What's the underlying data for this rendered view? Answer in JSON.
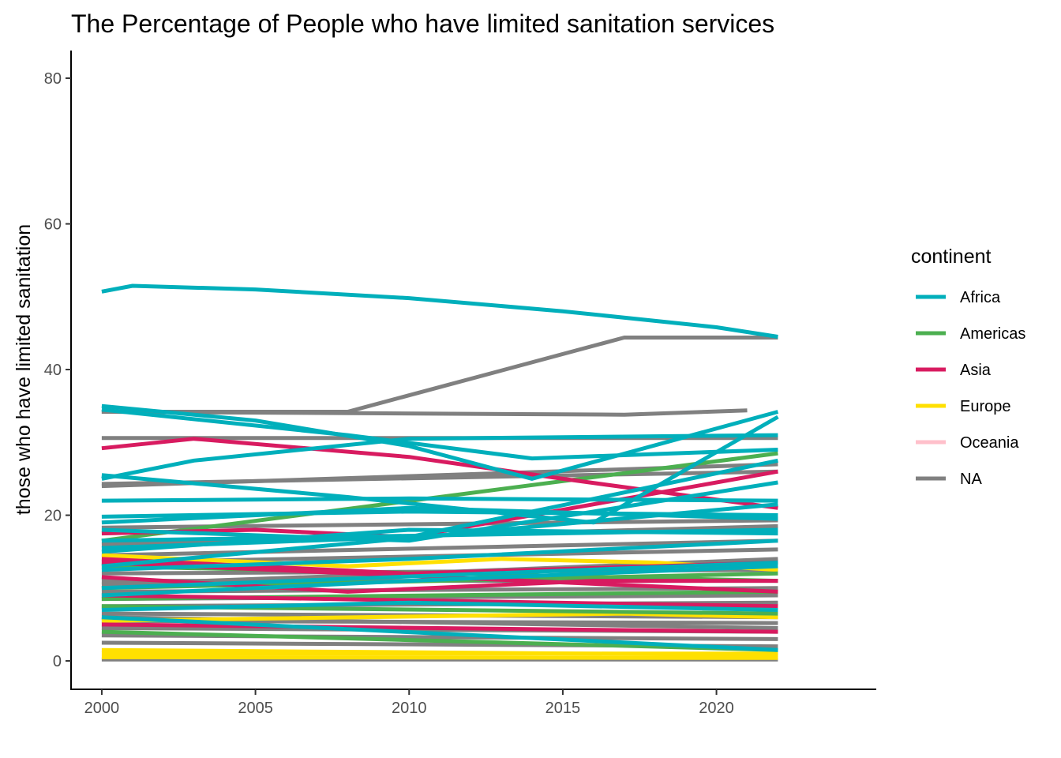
{
  "chart_data": {
    "type": "line",
    "title": "The Percentage of People who have limited sanitation services",
    "xlabel": "",
    "ylabel": "those who have limited sanitation",
    "xlim": [
      1999,
      2025.2
    ],
    "ylim": [
      -3.9,
      83.8
    ],
    "x_ticks": [
      2000,
      2005,
      2010,
      2015,
      2020
    ],
    "y_ticks": [
      0,
      20,
      40,
      60,
      80
    ],
    "grid": false,
    "legend": {
      "title": "continent",
      "position": "right",
      "entries": [
        {
          "label": "Africa",
          "color": "#00AFBB"
        },
        {
          "label": "Americas",
          "color": "#4CAF50"
        },
        {
          "label": "Asia",
          "color": "#D81B60"
        },
        {
          "label": "Europe",
          "color": "#FFE000"
        },
        {
          "label": "Oceania",
          "color": "#FFC0CB"
        },
        {
          "label": "NA",
          "color": "#808080"
        }
      ]
    },
    "series": [
      {
        "continent": "NA",
        "points": [
          [
            2000,
            0.2
          ],
          [
            2022,
            0.2
          ]
        ]
      },
      {
        "continent": "NA",
        "points": [
          [
            2000,
            2.5
          ],
          [
            2022,
            2.0
          ]
        ]
      },
      {
        "continent": "NA",
        "points": [
          [
            2000,
            3.5
          ],
          [
            2022,
            3.0
          ]
        ]
      },
      {
        "continent": "NA",
        "points": [
          [
            2000,
            4.5
          ],
          [
            2022,
            4.0
          ]
        ]
      },
      {
        "continent": "NA",
        "points": [
          [
            2000,
            5.5
          ],
          [
            2022,
            5.2
          ]
        ]
      },
      {
        "continent": "NA",
        "points": [
          [
            2000,
            6.5
          ],
          [
            2022,
            6.0
          ]
        ]
      },
      {
        "continent": "NA",
        "points": [
          [
            2000,
            7.5
          ],
          [
            2022,
            8.0
          ]
        ]
      },
      {
        "continent": "NA",
        "points": [
          [
            2000,
            8.5
          ],
          [
            2022,
            9.0
          ]
        ]
      },
      {
        "continent": "NA",
        "points": [
          [
            2000,
            9.5
          ],
          [
            2022,
            10.0
          ]
        ]
      },
      {
        "continent": "NA",
        "points": [
          [
            2000,
            11.0
          ],
          [
            2022,
            11.0
          ]
        ]
      },
      {
        "continent": "NA",
        "points": [
          [
            2000,
            12.0
          ],
          [
            2022,
            12.5
          ]
        ]
      },
      {
        "continent": "NA",
        "points": [
          [
            2000,
            13.5
          ],
          [
            2022,
            15.3
          ]
        ]
      },
      {
        "continent": "NA",
        "points": [
          [
            2000,
            14.5
          ],
          [
            2022,
            16.5
          ]
        ]
      },
      {
        "continent": "NA",
        "points": [
          [
            2000,
            18.3
          ],
          [
            2022,
            19.3
          ]
        ]
      },
      {
        "continent": "NA",
        "points": [
          [
            2000,
            24.0
          ],
          [
            2022,
            27.0
          ]
        ]
      },
      {
        "continent": "NA",
        "points": [
          [
            2000,
            24.3
          ],
          [
            2022,
            26.0
          ]
        ]
      },
      {
        "continent": "NA",
        "points": [
          [
            2000,
            30.6
          ],
          [
            2022,
            30.6
          ]
        ]
      },
      {
        "continent": "NA",
        "points": [
          [
            2000,
            34.2
          ],
          [
            2008,
            34.2
          ],
          [
            2017,
            44.4
          ],
          [
            2022,
            44.4
          ]
        ]
      },
      {
        "continent": "NA",
        "points": [
          [
            2000,
            34.2
          ],
          [
            2017,
            33.8
          ],
          [
            2021,
            34.4
          ]
        ]
      },
      {
        "continent": "NA",
        "points": [
          [
            2000,
            10.5
          ],
          [
            2010,
            12.0
          ],
          [
            2022,
            14.0
          ]
        ]
      },
      {
        "continent": "NA",
        "points": [
          [
            2000,
            6.0
          ],
          [
            2022,
            4.5
          ]
        ]
      },
      {
        "continent": "NA",
        "points": [
          [
            2000,
            16.0
          ],
          [
            2022,
            18.5
          ]
        ]
      },
      {
        "continent": "Europe",
        "points": [
          [
            2000,
            1.0
          ],
          [
            2010,
            1.0
          ],
          [
            2022,
            1.0
          ]
        ]
      },
      {
        "continent": "Europe",
        "points": [
          [
            2000,
            1.5
          ],
          [
            2022,
            0.8
          ]
        ]
      },
      {
        "continent": "Europe",
        "points": [
          [
            2000,
            0.5
          ],
          [
            2022,
            0.4
          ]
        ]
      },
      {
        "continent": "Europe",
        "points": [
          [
            2000,
            14.5
          ],
          [
            2008,
            13.0
          ],
          [
            2013,
            14.0
          ],
          [
            2018,
            13.5
          ],
          [
            2022,
            12.5
          ]
        ]
      },
      {
        "continent": "Europe",
        "points": [
          [
            2000,
            5.5
          ],
          [
            2017,
            6.5
          ],
          [
            2022,
            6.0
          ]
        ]
      },
      {
        "continent": "Americas",
        "points": [
          [
            2000,
            4.0
          ],
          [
            2022,
            1.5
          ]
        ]
      },
      {
        "continent": "Americas",
        "points": [
          [
            2000,
            7.5
          ],
          [
            2022,
            6.5
          ]
        ]
      },
      {
        "continent": "Americas",
        "points": [
          [
            2000,
            8.5
          ],
          [
            2022,
            9.5
          ]
        ]
      },
      {
        "continent": "Americas",
        "points": [
          [
            2000,
            16.5
          ],
          [
            2022,
            28.5
          ]
        ]
      },
      {
        "continent": "Americas",
        "points": [
          [
            2000,
            10.0
          ],
          [
            2022,
            12.0
          ]
        ]
      },
      {
        "continent": "Americas",
        "points": [
          [
            2000,
            13.0
          ],
          [
            2022,
            11.0
          ]
        ]
      },
      {
        "continent": "Asia",
        "points": [
          [
            2000,
            29.2
          ],
          [
            2003,
            30.5
          ],
          [
            2010,
            28.0
          ],
          [
            2015,
            25.0
          ],
          [
            2022,
            21.0
          ]
        ]
      },
      {
        "continent": "Asia",
        "points": [
          [
            2000,
            17.5
          ],
          [
            2005,
            18.0
          ],
          [
            2010,
            17.0
          ],
          [
            2022,
            26.0
          ]
        ]
      },
      {
        "continent": "Asia",
        "points": [
          [
            2000,
            11.5
          ],
          [
            2008,
            9.5
          ],
          [
            2016,
            11.0
          ],
          [
            2022,
            11.0
          ]
        ]
      },
      {
        "continent": "Asia",
        "points": [
          [
            2000,
            5.0
          ],
          [
            2022,
            4.0
          ]
        ]
      },
      {
        "continent": "Asia",
        "points": [
          [
            2000,
            14.0
          ],
          [
            2010,
            12.0
          ],
          [
            2022,
            13.5
          ]
        ]
      },
      {
        "continent": "Asia",
        "points": [
          [
            2000,
            9.0
          ],
          [
            2022,
            7.5
          ]
        ]
      },
      {
        "continent": "Asia",
        "points": [
          [
            2000,
            13.5
          ],
          [
            2022,
            9.5
          ]
        ]
      },
      {
        "continent": "Africa",
        "points": [
          [
            2000,
            50.7
          ],
          [
            2001,
            51.5
          ],
          [
            2005,
            51.0
          ],
          [
            2010,
            49.8
          ],
          [
            2015,
            48.0
          ],
          [
            2020,
            45.8
          ],
          [
            2022,
            44.5
          ]
        ]
      },
      {
        "continent": "Africa",
        "points": [
          [
            2000,
            35.0
          ],
          [
            2005,
            33.0
          ],
          [
            2010,
            29.5
          ],
          [
            2014,
            25.0
          ],
          [
            2022,
            34.2
          ]
        ]
      },
      {
        "continent": "Africa",
        "points": [
          [
            2000,
            34.5
          ],
          [
            2008,
            31.0
          ],
          [
            2014,
            27.8
          ],
          [
            2022,
            29.0
          ]
        ]
      },
      {
        "continent": "Africa",
        "points": [
          [
            2000,
            25.0
          ],
          [
            2003,
            27.5
          ],
          [
            2010,
            30.5
          ],
          [
            2022,
            31.0
          ]
        ]
      },
      {
        "continent": "Africa",
        "points": [
          [
            2000,
            25.5
          ],
          [
            2008,
            22.5
          ],
          [
            2016,
            19.0
          ],
          [
            2022,
            33.5
          ]
        ]
      },
      {
        "continent": "Africa",
        "points": [
          [
            2000,
            22.0
          ],
          [
            2010,
            22.3
          ],
          [
            2022,
            22.0
          ]
        ]
      },
      {
        "continent": "Africa",
        "points": [
          [
            2000,
            19.8
          ],
          [
            2010,
            20.5
          ],
          [
            2022,
            20.0
          ]
        ]
      },
      {
        "continent": "Africa",
        "points": [
          [
            2000,
            18.0
          ],
          [
            2010,
            16.5
          ],
          [
            2022,
            24.5
          ]
        ]
      },
      {
        "continent": "Africa",
        "points": [
          [
            2000,
            15.5
          ],
          [
            2010,
            17.0
          ],
          [
            2022,
            27.5
          ]
        ]
      },
      {
        "continent": "Africa",
        "points": [
          [
            2000,
            15.0
          ],
          [
            2010,
            18.0
          ],
          [
            2022,
            17.5
          ]
        ]
      },
      {
        "continent": "Africa",
        "points": [
          [
            2000,
            13.0
          ],
          [
            2022,
            21.5
          ]
        ]
      },
      {
        "continent": "Africa",
        "points": [
          [
            2000,
            12.5
          ],
          [
            2010,
            14.0
          ],
          [
            2022,
            16.5
          ]
        ]
      },
      {
        "continent": "Africa",
        "points": [
          [
            2000,
            10.0
          ],
          [
            2022,
            13.5
          ]
        ]
      },
      {
        "continent": "Africa",
        "points": [
          [
            2000,
            9.0
          ],
          [
            2010,
            11.0
          ],
          [
            2022,
            13.0
          ]
        ]
      },
      {
        "continent": "Africa",
        "points": [
          [
            2000,
            7.0
          ],
          [
            2010,
            8.0
          ],
          [
            2022,
            7.0
          ]
        ]
      },
      {
        "continent": "Africa",
        "points": [
          [
            2000,
            6.0
          ],
          [
            2022,
            1.5
          ]
        ]
      },
      {
        "continent": "Africa",
        "points": [
          [
            2000,
            19.0
          ],
          [
            2010,
            21.0
          ],
          [
            2022,
            19.5
          ]
        ]
      },
      {
        "continent": "Africa",
        "points": [
          [
            2000,
            16.5
          ],
          [
            2022,
            18.0
          ]
        ]
      }
    ]
  }
}
